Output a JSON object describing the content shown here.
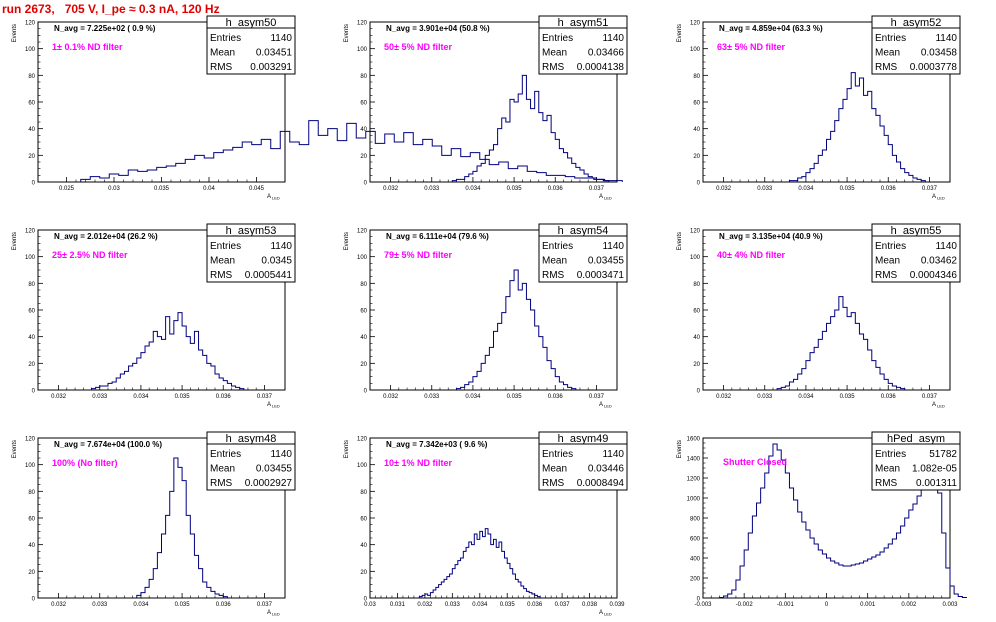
{
  "page": {
    "run_title": "run 2673,   705 V, I_pe ≈ 0.3 nA, 120 Hz"
  },
  "chart_data": [
    {
      "type": "histogram",
      "name": "h_asym50",
      "navg": "N_avg = 7.225e+02 ( 0.9 %)",
      "annotation": "1± 0.1% ND filter",
      "stats": {
        "Entries": "1140",
        "Mean": "0.03451",
        "RMS": "0.003291"
      },
      "ylabel": "Events",
      "xlabel": "A_{LED}",
      "xlim": [
        0.022,
        0.048
      ],
      "ylim": [
        0,
        120
      ],
      "xticks": [
        "0.025",
        "0.03",
        "0.035",
        "0.04",
        "0.045"
      ],
      "xtick_values": [
        0.025,
        0.03,
        0.035,
        0.04,
        0.045
      ],
      "yticks": [
        0,
        20,
        40,
        60,
        80,
        100,
        120
      ],
      "bin_edges": [
        0.0265,
        0.0275
      ],
      "counts": [
        2,
        4,
        3,
        6,
        5,
        9,
        8,
        9,
        11,
        12,
        14,
        17,
        20,
        18,
        22,
        24,
        26,
        30,
        28,
        32,
        25,
        38,
        30,
        28,
        46,
        35,
        40,
        31,
        44,
        33,
        38,
        29,
        36,
        30,
        37,
        28,
        32,
        27,
        20,
        25,
        19,
        22,
        17,
        13,
        15,
        10,
        12,
        8,
        7,
        5,
        5,
        4,
        3,
        3,
        2,
        1,
        1
      ]
    },
    {
      "type": "histogram",
      "name": "h_asym51",
      "navg": "N_avg = 3.901e+04 (50.8 %)",
      "annotation": "50± 5% ND filter",
      "stats": {
        "Entries": "1140",
        "Mean": "0.03466",
        "RMS": "0.0004138"
      },
      "ylabel": "Events",
      "xlabel": "A_{LED}",
      "xlim": [
        0.0315,
        0.0375
      ],
      "ylim": [
        0,
        120
      ],
      "xticks": [
        "0.032",
        "0.033",
        "0.034",
        "0.035",
        "0.036",
        "0.037"
      ],
      "xtick_values": [
        0.032,
        0.033,
        0.034,
        0.035,
        0.036,
        0.037
      ],
      "yticks": [
        0,
        20,
        40,
        60,
        80,
        100,
        120
      ],
      "bin_edges": [
        0.0335,
        0.0336
      ],
      "counts": [
        1,
        2,
        2,
        4,
        6,
        8,
        12,
        14,
        20,
        24,
        28,
        40,
        48,
        45,
        62,
        60,
        66,
        80,
        62,
        55,
        68,
        52,
        46,
        50,
        37,
        32,
        25,
        22,
        18,
        14,
        11,
        9,
        6,
        4,
        3,
        2,
        2,
        1
      ]
    },
    {
      "type": "histogram",
      "name": "h_asym52",
      "navg": "N_avg = 4.859e+04 (63.3 %)",
      "annotation": "63± 5% ND filter",
      "stats": {
        "Entries": "1140",
        "Mean": "0.03458",
        "RMS": "0.0003778"
      },
      "ylabel": "Events",
      "xlabel": "A_{LED}",
      "xlim": [
        0.0315,
        0.0375
      ],
      "ylim": [
        0,
        120
      ],
      "xticks": [
        "0.032",
        "0.033",
        "0.034",
        "0.035",
        "0.036",
        "0.037"
      ],
      "xtick_values": [
        0.032,
        0.033,
        0.034,
        0.035,
        0.036,
        0.037
      ],
      "yticks": [
        0,
        20,
        40,
        60,
        80,
        100,
        120
      ],
      "bin_edges": [
        0.0336,
        0.0337
      ],
      "counts": [
        1,
        1,
        3,
        4,
        7,
        10,
        14,
        20,
        24,
        32,
        38,
        46,
        55,
        62,
        70,
        82,
        72,
        78,
        65,
        68,
        55,
        50,
        42,
        35,
        28,
        20,
        15,
        10,
        7,
        5,
        3,
        2,
        1
      ]
    },
    {
      "type": "histogram",
      "name": "h_asym53",
      "navg": "N_avg = 2.012e+04 (26.2 %)",
      "annotation": "25± 2.5% ND filter",
      "stats": {
        "Entries": "1140",
        "Mean": "0.0345",
        "RMS": "0.0005441"
      },
      "ylabel": "Events",
      "xlabel": "A_{LED}",
      "xlim": [
        0.0315,
        0.0375
      ],
      "ylim": [
        0,
        120
      ],
      "xticks": [
        "0.032",
        "0.033",
        "0.034",
        "0.035",
        "0.036",
        "0.037"
      ],
      "xtick_values": [
        0.032,
        0.033,
        0.034,
        0.035,
        0.036,
        0.037
      ],
      "yticks": [
        0,
        20,
        40,
        60,
        80,
        100,
        120
      ],
      "bin_edges": [
        0.0328,
        0.0329
      ],
      "counts": [
        1,
        2,
        3,
        3,
        5,
        6,
        9,
        12,
        14,
        18,
        20,
        24,
        28,
        33,
        36,
        44,
        40,
        38,
        55,
        42,
        52,
        58,
        48,
        40,
        35,
        44,
        30,
        26,
        20,
        18,
        12,
        9,
        7,
        5,
        3,
        2,
        1
      ]
    },
    {
      "type": "histogram",
      "name": "h_asym54",
      "navg": "N_avg = 6.111e+04 (79.6 %)",
      "annotation": "79± 5% ND filter",
      "stats": {
        "Entries": "1140",
        "Mean": "0.03455",
        "RMS": "0.0003471"
      },
      "ylabel": "Events",
      "xlabel": "A_{LED}",
      "xlim": [
        0.0315,
        0.0375
      ],
      "ylim": [
        0,
        120
      ],
      "xticks": [
        "0.032",
        "0.033",
        "0.034",
        "0.035",
        "0.036",
        "0.037"
      ],
      "xtick_values": [
        0.032,
        0.033,
        0.034,
        0.035,
        0.036,
        0.037
      ],
      "yticks": [
        0,
        20,
        40,
        60,
        80,
        100,
        120
      ],
      "bin_edges": [
        0.0336,
        0.0337
      ],
      "counts": [
        1,
        2,
        4,
        6,
        10,
        14,
        20,
        26,
        32,
        44,
        50,
        58,
        70,
        82,
        90,
        75,
        80,
        68,
        60,
        48,
        40,
        32,
        22,
        16,
        10,
        6,
        4,
        2,
        1
      ]
    },
    {
      "type": "histogram",
      "name": "h_asym55",
      "navg": "N_avg = 3.135e+04 (40.9 %)",
      "annotation": "40± 4% ND filter",
      "stats": {
        "Entries": "1140",
        "Mean": "0.03462",
        "RMS": "0.0004346"
      },
      "ylabel": "Events",
      "xlabel": "A_{LED}",
      "xlim": [
        0.0315,
        0.0375
      ],
      "ylim": [
        0,
        120
      ],
      "xticks": [
        "0.032",
        "0.033",
        "0.034",
        "0.035",
        "0.036",
        "0.037"
      ],
      "xtick_values": [
        0.032,
        0.033,
        0.034,
        0.035,
        0.036,
        0.037
      ],
      "yticks": [
        0,
        20,
        40,
        60,
        80,
        100,
        120
      ],
      "bin_edges": [
        0.0333,
        0.0334
      ],
      "counts": [
        1,
        2,
        3,
        6,
        8,
        12,
        16,
        22,
        28,
        32,
        38,
        44,
        50,
        55,
        60,
        70,
        62,
        55,
        58,
        50,
        42,
        38,
        30,
        22,
        17,
        12,
        8,
        5,
        3,
        2,
        1
      ]
    },
    {
      "type": "histogram",
      "name": "h_asym48",
      "navg": "N_avg = 7.674e+04 (100.0 %)",
      "annotation": "100% (No filter)",
      "stats": {
        "Entries": "1140",
        "Mean": "0.03455",
        "RMS": "0.0002927"
      },
      "ylabel": "Events",
      "xlabel": "A_{LED}",
      "xlim": [
        0.0315,
        0.0375
      ],
      "ylim": [
        0,
        120
      ],
      "xticks": [
        "0.032",
        "0.033",
        "0.034",
        "0.035",
        "0.036",
        "0.037"
      ],
      "xtick_values": [
        0.032,
        0.033,
        0.034,
        0.035,
        0.036,
        0.037
      ],
      "yticks": [
        0,
        20,
        40,
        60,
        80,
        100,
        120
      ],
      "bin_edges": [
        0.0339,
        0.034
      ],
      "counts": [
        2,
        4,
        8,
        14,
        22,
        34,
        48,
        62,
        80,
        105,
        98,
        88,
        62,
        48,
        32,
        22,
        12,
        8,
        5,
        3,
        2,
        1
      ]
    },
    {
      "type": "histogram",
      "name": "h_asym49",
      "navg": "N_avg = 7.342e+03 ( 9.6 %)",
      "annotation": "10± 1% ND filter",
      "stats": {
        "Entries": "1140",
        "Mean": "0.03446",
        "RMS": "0.0008494"
      },
      "ylabel": "Events",
      "xlabel": "A_{LED}",
      "xlim": [
        0.03,
        0.039
      ],
      "ylim": [
        0,
        120
      ],
      "xticks": [
        "0.03",
        "0.031",
        "0.032",
        "0.033",
        "0.034",
        "0.035",
        "0.036",
        "0.037",
        "0.038",
        "0.039"
      ],
      "xtick_values": [
        0.03,
        0.031,
        0.032,
        0.033,
        0.034,
        0.035,
        0.036,
        0.037,
        0.038,
        0.039
      ],
      "yticks": [
        0,
        20,
        40,
        60,
        80,
        100,
        120
      ],
      "bin_edges": [
        0.0318,
        0.0319
      ],
      "counts": [
        1,
        2,
        3,
        2,
        4,
        6,
        8,
        10,
        12,
        14,
        16,
        18,
        22,
        25,
        28,
        30,
        35,
        38,
        42,
        40,
        48,
        44,
        50,
        46,
        52,
        48,
        40,
        44,
        38,
        42,
        35,
        30,
        26,
        22,
        18,
        14,
        12,
        9,
        7,
        5,
        4,
        3,
        2,
        1
      ]
    },
    {
      "type": "histogram",
      "name": "hPed_asym",
      "navg": "",
      "annotation": "Shutter Closed",
      "stats": {
        "Entries": "51782",
        "Mean": "1.082e-05",
        "RMS": "0.001311"
      },
      "ylabel": "Events",
      "xlabel": "",
      "xlim": [
        -0.003,
        0.003
      ],
      "ylim": [
        0,
        1600
      ],
      "xticks": [
        "-0.003",
        "-0.002",
        "-0.001",
        "0",
        "0.001",
        "0.002",
        "0.003"
      ],
      "xtick_values": [
        -0.003,
        -0.002,
        -0.001,
        0,
        0.001,
        0.002,
        0.003
      ],
      "yticks": [
        0,
        200,
        400,
        600,
        800,
        1000,
        1200,
        1400,
        1600
      ],
      "bin_edges": [
        -0.0026,
        -0.0025
      ],
      "counts": [
        5,
        20,
        40,
        80,
        180,
        320,
        480,
        650,
        820,
        950,
        1100,
        1250,
        1420,
        1540,
        1480,
        1380,
        1250,
        1100,
        980,
        860,
        760,
        680,
        600,
        540,
        480,
        440,
        400,
        370,
        350,
        330,
        320,
        320,
        330,
        340,
        350,
        370,
        390,
        410,
        430,
        460,
        500,
        540,
        590,
        650,
        720,
        800,
        880,
        940,
        1020,
        1100,
        1180,
        1340,
        1300,
        1050,
        650,
        300,
        120,
        40,
        15,
        5
      ]
    }
  ]
}
